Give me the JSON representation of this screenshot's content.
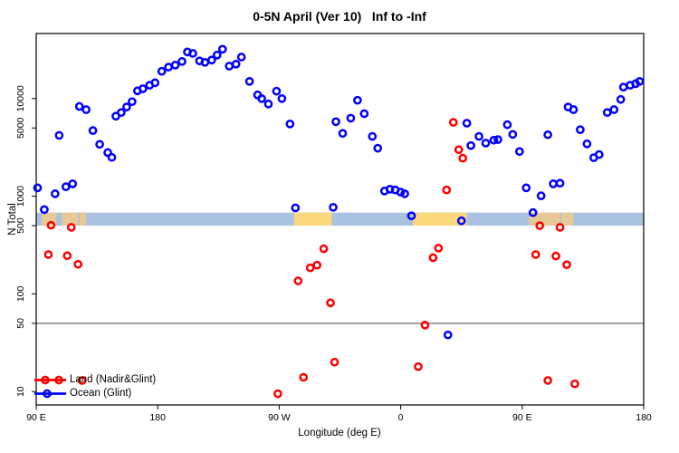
{
  "title": "0-5N April (Ver 10)   Inf to -Inf",
  "axes": {
    "x": {
      "label": "Longitude (deg E)",
      "ticks": [
        {
          "lon": 90,
          "label": "90 E"
        },
        {
          "lon": 180,
          "label": "180"
        },
        {
          "lon": 270,
          "label": "90 W"
        },
        {
          "lon": 360,
          "label": "0"
        },
        {
          "lon": 450,
          "label": "90 E"
        },
        {
          "lon": 540,
          "label": "180"
        }
      ]
    },
    "y": {
      "label": "N Total",
      "scale": "log",
      "ticks": [
        {
          "value": 10,
          "label": "10"
        },
        {
          "value": 50,
          "label": "50"
        },
        {
          "value": 100,
          "label": "100"
        },
        {
          "value": 500,
          "label": "500"
        },
        {
          "value": 1000,
          "label": "1000"
        },
        {
          "value": 5000,
          "label": "5000"
        },
        {
          "value": 10000,
          "label": "10000"
        }
      ]
    }
  },
  "legend": {
    "land_label": "Land (Nadir&Glint)",
    "ocean_label": "Ocean (Glint)",
    "land_color": "#ff0000",
    "ocean_color": "#0000ff"
  },
  "reference_line": {
    "value": 50,
    "color": "#8c8c8c"
  },
  "map_band": {
    "description": "0-5N latitude strip map: ocean blue with land segments",
    "ocean_color": "#a9c2e2",
    "land_color": "#fcd87d",
    "patchy_land_color": "#ecca8f",
    "n_range": [
      500,
      680
    ],
    "land_segments": [
      {
        "lon_from": 94,
        "lon_to": 105,
        "patchy": true
      },
      {
        "lon_from": 109,
        "lon_to": 121,
        "patchy": true
      },
      {
        "lon_from": 122,
        "lon_to": 127,
        "patchy": true
      },
      {
        "lon_from": 281,
        "lon_to": 309,
        "patchy": false
      },
      {
        "lon_from": 369,
        "lon_to": 409,
        "patchy": false
      },
      {
        "lon_from": 455,
        "lon_to": 478,
        "patchy": true
      },
      {
        "lon_from": 479,
        "lon_to": 488,
        "patchy": true
      }
    ]
  },
  "chart_data": {
    "type": "scatter",
    "title": "0-5N April (Ver 10)   Inf to -Inf",
    "xlabel": "Longitude (deg E)",
    "ylabel": "N Total",
    "x_axis_note": "longitude in deg E from 90E eastward, wrapping past 360 to 180 (range 90-540)",
    "y_axis": "log scale, approx 8 to 45000",
    "grid": false,
    "legend_position": "bottom-left",
    "series": [
      {
        "name": "Ocean (Glint)",
        "color": "#0000ff",
        "points": [
          [
            202,
            30000
          ],
          [
            198,
            24000
          ],
          [
            193,
            22000
          ],
          [
            188,
            21000
          ],
          [
            183,
            19000
          ],
          [
            178,
            14500
          ],
          [
            174,
            13700
          ],
          [
            169,
            12600
          ],
          [
            165,
            12000
          ],
          [
            161,
            9300
          ],
          [
            157,
            8200
          ],
          [
            153,
            7200
          ],
          [
            149,
            6600
          ],
          [
            122,
            8300
          ],
          [
            127,
            7700
          ],
          [
            132,
            4700
          ],
          [
            107,
            4200
          ],
          [
            137,
            3400
          ],
          [
            143,
            2800
          ],
          [
            146,
            2500
          ],
          [
            117,
            1340
          ],
          [
            112,
            1250
          ],
          [
            104,
            1060
          ],
          [
            91,
            1220
          ],
          [
            96,
            730
          ],
          [
            206,
            29000
          ],
          [
            211,
            24300
          ],
          [
            215,
            23500
          ],
          [
            220,
            24800
          ],
          [
            224,
            27900
          ],
          [
            228,
            32000
          ],
          [
            233,
            21500
          ],
          [
            238,
            22500
          ],
          [
            242,
            26600
          ],
          [
            248,
            15000
          ],
          [
            254,
            10900
          ],
          [
            257,
            10000
          ],
          [
            262,
            8800
          ],
          [
            268,
            11900
          ],
          [
            272,
            10000
          ],
          [
            278,
            5500
          ],
          [
            312,
            5800
          ],
          [
            317,
            4400
          ],
          [
            282,
            760
          ],
          [
            310,
            770
          ],
          [
            328,
            9600
          ],
          [
            333,
            7000
          ],
          [
            323,
            6300
          ],
          [
            339,
            4100
          ],
          [
            343,
            3100
          ],
          [
            409,
            5600
          ],
          [
            418,
            4100
          ],
          [
            412,
            3300
          ],
          [
            423,
            3500
          ],
          [
            429,
            3750
          ],
          [
            432,
            3800
          ],
          [
            348,
            1130
          ],
          [
            352,
            1180
          ],
          [
            356,
            1160
          ],
          [
            360,
            1100
          ],
          [
            363,
            1060
          ],
          [
            368,
            630
          ],
          [
            405,
            560
          ],
          [
            439,
            5400
          ],
          [
            443,
            4300
          ],
          [
            448,
            2870
          ],
          [
            469,
            4260
          ],
          [
            484,
            8200
          ],
          [
            488,
            7700
          ],
          [
            493,
            4800
          ],
          [
            498,
            3440
          ],
          [
            503,
            2480
          ],
          [
            507,
            2670
          ],
          [
            513,
            7200
          ],
          [
            518,
            7700
          ],
          [
            523,
            9800
          ],
          [
            525,
            13100
          ],
          [
            530,
            13700
          ],
          [
            534,
            14200
          ],
          [
            537,
            15000
          ],
          [
            453,
            1220
          ],
          [
            464,
            1010
          ],
          [
            473,
            1340
          ],
          [
            478,
            1360
          ],
          [
            458,
            680
          ],
          [
            395,
            38
          ]
        ]
      },
      {
        "name": "Land (Nadir&Glint)",
        "color": "#ff0000",
        "points": [
          [
            101,
            505
          ],
          [
            116,
            480
          ],
          [
            99,
            253
          ],
          [
            113,
            246
          ],
          [
            121,
            201
          ],
          [
            124,
            13
          ],
          [
            269,
            9.5
          ],
          [
            284,
            136
          ],
          [
            288,
            14
          ],
          [
            293,
            185
          ],
          [
            298,
            197
          ],
          [
            303,
            290
          ],
          [
            308,
            81
          ],
          [
            311,
            20
          ],
          [
            373,
            18
          ],
          [
            378,
            48
          ],
          [
            384,
            235
          ],
          [
            388,
            294
          ],
          [
            394,
            1160
          ],
          [
            399,
            5700
          ],
          [
            403,
            3000
          ],
          [
            406,
            2450
          ],
          [
            460,
            253
          ],
          [
            463,
            500
          ],
          [
            469,
            13
          ],
          [
            475,
            244
          ],
          [
            478,
            480
          ],
          [
            483,
            199
          ],
          [
            489,
            12
          ]
        ]
      }
    ]
  }
}
